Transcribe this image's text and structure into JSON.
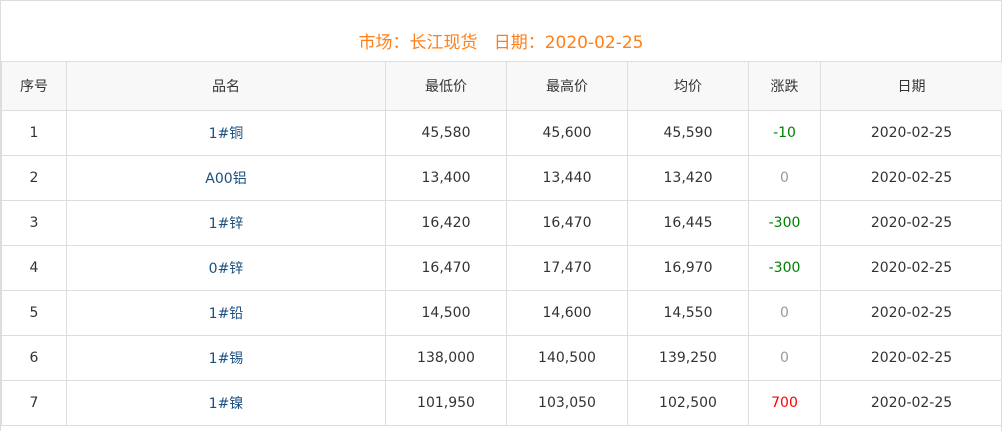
{
  "title": "市场：长江现货   日期：2020-02-25",
  "colors": {
    "title": "#ff7f1a",
    "down": "#008000",
    "flat": "#999999",
    "up": "#ff0000",
    "name": "#1a4f80"
  },
  "columns": [
    "序号",
    "品名",
    "最低价",
    "最高价",
    "均价",
    "涨跌",
    "日期"
  ],
  "rows": [
    {
      "no": "1",
      "name": "1#铜",
      "low": "45,580",
      "high": "45,600",
      "avg": "45,590",
      "change": "-10",
      "date": "2020-02-25"
    },
    {
      "no": "2",
      "name": "A00铝",
      "low": "13,400",
      "high": "13,440",
      "avg": "13,420",
      "change": "0",
      "date": "2020-02-25"
    },
    {
      "no": "3",
      "name": "1#锌",
      "low": "16,420",
      "high": "16,470",
      "avg": "16,445",
      "change": "-300",
      "date": "2020-02-25"
    },
    {
      "no": "4",
      "name": "0#锌",
      "low": "16,470",
      "high": "17,470",
      "avg": "16,970",
      "change": "-300",
      "date": "2020-02-25"
    },
    {
      "no": "5",
      "name": "1#铅",
      "low": "14,500",
      "high": "14,600",
      "avg": "14,550",
      "change": "0",
      "date": "2020-02-25"
    },
    {
      "no": "6",
      "name": "1#锡",
      "low": "138,000",
      "high": "140,500",
      "avg": "139,250",
      "change": "0",
      "date": "2020-02-25"
    },
    {
      "no": "7",
      "name": "1#镍",
      "low": "101,950",
      "high": "103,050",
      "avg": "102,500",
      "change": "700",
      "date": "2020-02-25"
    }
  ]
}
